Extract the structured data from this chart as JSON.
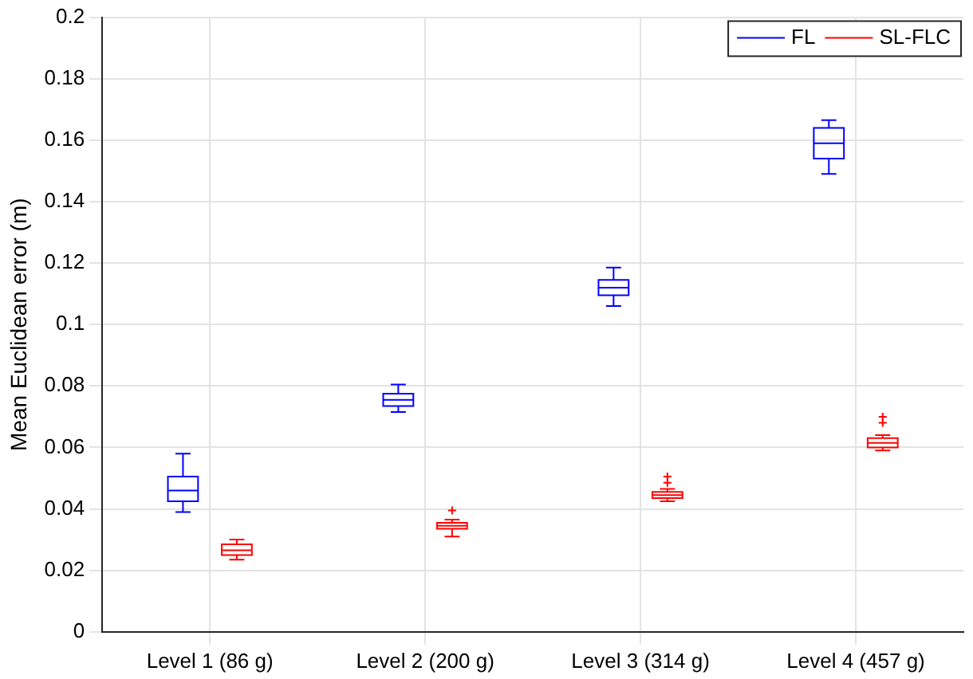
{
  "chart_data": {
    "type": "box",
    "ylabel": "Mean Euclidean error (m)",
    "categories": [
      "Level 1 (86 g)",
      "Level 2 (200 g)",
      "Level 3 (314 g)",
      "Level 4 (457 g)"
    ],
    "ylim": [
      0,
      0.2
    ],
    "yticks": [
      0,
      0.02,
      0.04,
      0.06,
      0.08,
      0.1,
      0.12,
      0.14,
      0.16,
      0.18,
      0.2
    ],
    "grid": true,
    "legend": "top right",
    "series": [
      {
        "name": "FL",
        "color": "#0000ff",
        "boxes": [
          {
            "low": 0.039,
            "q1": 0.0425,
            "median": 0.046,
            "q3": 0.0505,
            "high": 0.058
          },
          {
            "low": 0.0715,
            "q1": 0.0735,
            "median": 0.0755,
            "q3": 0.0775,
            "high": 0.0805
          },
          {
            "low": 0.106,
            "q1": 0.1095,
            "median": 0.112,
            "q3": 0.1145,
            "high": 0.1185
          },
          {
            "low": 0.149,
            "q1": 0.154,
            "median": 0.159,
            "q3": 0.164,
            "high": 0.1665
          }
        ]
      },
      {
        "name": "SL-FLC",
        "color": "#ff0000",
        "boxes": [
          {
            "low": 0.0235,
            "q1": 0.025,
            "median": 0.0265,
            "q3": 0.0285,
            "high": 0.03
          },
          {
            "low": 0.031,
            "q1": 0.0335,
            "median": 0.0345,
            "q3": 0.0355,
            "high": 0.0365,
            "outliers": [
              0.0395
            ]
          },
          {
            "low": 0.0425,
            "q1": 0.0435,
            "median": 0.0445,
            "q3": 0.0455,
            "high": 0.0465,
            "outliers": [
              0.0485,
              0.0505
            ]
          },
          {
            "low": 0.059,
            "q1": 0.06,
            "median": 0.0615,
            "q3": 0.063,
            "high": 0.064,
            "outliers": [
              0.068,
              0.07
            ]
          }
        ]
      }
    ]
  }
}
